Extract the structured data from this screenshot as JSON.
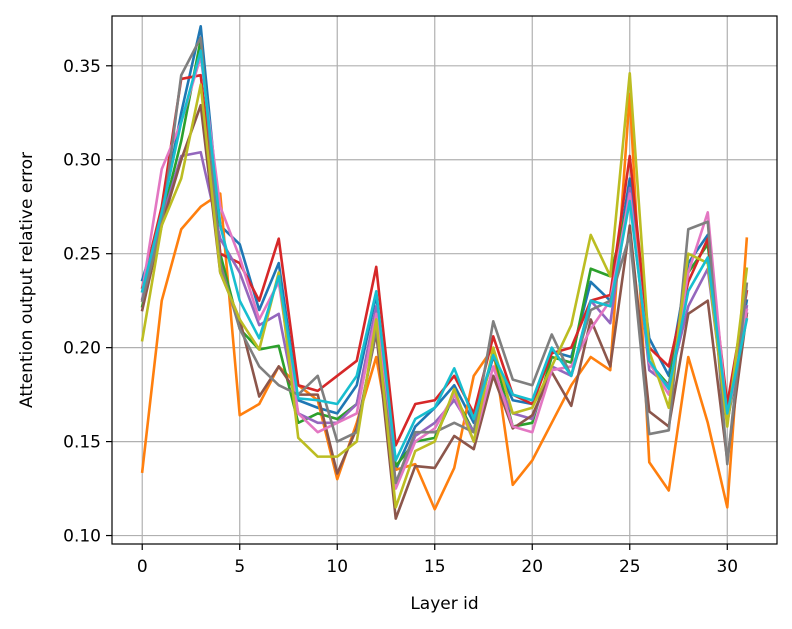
{
  "chart_data": {
    "type": "line",
    "title": "",
    "xlabel": "Layer id",
    "ylabel": "Attention output relative error",
    "xlim": [
      -1.55,
      32.55
    ],
    "ylim": [
      0.0955,
      0.3765
    ],
    "grid": true,
    "legend": "none",
    "x": [
      0,
      1,
      2,
      3,
      4,
      5,
      6,
      7,
      8,
      9,
      10,
      11,
      12,
      13,
      14,
      15,
      16,
      17,
      18,
      19,
      20,
      21,
      22,
      23,
      24,
      25,
      26,
      27,
      28,
      29,
      30,
      31
    ],
    "xticks": [
      0,
      5,
      10,
      15,
      20,
      25,
      30
    ],
    "xtick_labels": [
      "0",
      "5",
      "10",
      "15",
      "20",
      "25",
      "30"
    ],
    "yticks": [
      0.1,
      0.15,
      0.2,
      0.25,
      0.3,
      0.35
    ],
    "ytick_labels": [
      "0.10",
      "0.15",
      "0.20",
      "0.25",
      "0.30",
      "0.35"
    ],
    "series": [
      {
        "color": "#1f77b4",
        "values": [
          0.236,
          0.27,
          0.325,
          0.371,
          0.265,
          0.255,
          0.22,
          0.245,
          0.172,
          0.168,
          0.165,
          0.18,
          0.228,
          0.135,
          0.158,
          0.168,
          0.18,
          0.16,
          0.195,
          0.172,
          0.17,
          0.198,
          0.195,
          0.235,
          0.225,
          0.29,
          0.205,
          0.185,
          0.245,
          0.26,
          0.165,
          0.225
        ]
      },
      {
        "color": "#ff7f0e",
        "values": [
          0.134,
          0.225,
          0.263,
          0.275,
          0.282,
          0.164,
          0.17,
          0.19,
          0.18,
          0.172,
          0.13,
          0.16,
          0.195,
          0.135,
          0.138,
          0.114,
          0.136,
          0.185,
          0.2,
          0.127,
          0.14,
          0.16,
          0.18,
          0.195,
          0.188,
          0.335,
          0.139,
          0.124,
          0.195,
          0.16,
          0.115,
          0.258
        ]
      },
      {
        "color": "#2ca02c",
        "values": [
          0.222,
          0.268,
          0.31,
          0.364,
          0.25,
          0.21,
          0.199,
          0.201,
          0.16,
          0.165,
          0.162,
          0.17,
          0.215,
          0.137,
          0.15,
          0.152,
          0.175,
          0.155,
          0.198,
          0.158,
          0.16,
          0.195,
          0.192,
          0.242,
          0.238,
          0.28,
          0.192,
          0.18,
          0.24,
          0.255,
          0.16,
          0.218
        ]
      },
      {
        "color": "#d62728",
        "values": [
          0.232,
          0.275,
          0.343,
          0.345,
          0.25,
          0.245,
          0.225,
          0.258,
          0.18,
          0.177,
          0.185,
          0.193,
          0.243,
          0.148,
          0.17,
          0.172,
          0.185,
          0.165,
          0.206,
          0.175,
          0.17,
          0.197,
          0.2,
          0.225,
          0.228,
          0.302,
          0.2,
          0.19,
          0.235,
          0.258,
          0.17,
          0.23
        ]
      },
      {
        "color": "#9467bd",
        "values": [
          0.226,
          0.268,
          0.302,
          0.304,
          0.258,
          0.24,
          0.212,
          0.218,
          0.165,
          0.16,
          0.16,
          0.17,
          0.222,
          0.128,
          0.153,
          0.16,
          0.172,
          0.155,
          0.185,
          0.165,
          0.162,
          0.19,
          0.185,
          0.225,
          0.213,
          0.285,
          0.188,
          0.18,
          0.222,
          0.242,
          0.16,
          0.222
        ]
      },
      {
        "color": "#8c564b",
        "values": [
          0.22,
          0.265,
          0.3,
          0.329,
          0.24,
          0.215,
          0.174,
          0.19,
          0.175,
          0.175,
          0.133,
          0.157,
          0.208,
          0.109,
          0.137,
          0.136,
          0.153,
          0.146,
          0.185,
          0.157,
          0.164,
          0.187,
          0.169,
          0.215,
          0.19,
          0.265,
          0.166,
          0.158,
          0.218,
          0.225,
          0.14,
          0.218
        ]
      },
      {
        "color": "#e377c2",
        "values": [
          0.23,
          0.295,
          0.32,
          0.355,
          0.275,
          0.248,
          0.215,
          0.235,
          0.165,
          0.155,
          0.16,
          0.165,
          0.218,
          0.125,
          0.15,
          0.157,
          0.175,
          0.15,
          0.19,
          0.158,
          0.155,
          0.188,
          0.19,
          0.21,
          0.225,
          0.282,
          0.192,
          0.175,
          0.24,
          0.272,
          0.162,
          0.22
        ]
      },
      {
        "color": "#7f7f7f",
        "values": [
          0.225,
          0.265,
          0.345,
          0.365,
          0.245,
          0.21,
          0.19,
          0.18,
          0.175,
          0.185,
          0.15,
          0.155,
          0.21,
          0.128,
          0.155,
          0.155,
          0.16,
          0.155,
          0.214,
          0.183,
          0.18,
          0.207,
          0.185,
          0.22,
          0.225,
          0.26,
          0.154,
          0.156,
          0.263,
          0.267,
          0.138,
          0.234
        ]
      },
      {
        "color": "#bcbd22",
        "values": [
          0.204,
          0.265,
          0.29,
          0.34,
          0.24,
          0.215,
          0.199,
          0.24,
          0.152,
          0.142,
          0.142,
          0.15,
          0.215,
          0.115,
          0.145,
          0.15,
          0.178,
          0.15,
          0.2,
          0.165,
          0.168,
          0.19,
          0.212,
          0.26,
          0.238,
          0.346,
          0.198,
          0.168,
          0.25,
          0.245,
          0.158,
          0.242
        ]
      },
      {
        "color": "#17becf",
        "values": [
          0.23,
          0.272,
          0.32,
          0.358,
          0.265,
          0.225,
          0.205,
          0.238,
          0.173,
          0.172,
          0.17,
          0.185,
          0.23,
          0.14,
          0.162,
          0.168,
          0.189,
          0.162,
          0.196,
          0.175,
          0.172,
          0.2,
          0.185,
          0.225,
          0.222,
          0.278,
          0.193,
          0.178,
          0.23,
          0.248,
          0.165,
          0.215
        ]
      }
    ]
  }
}
